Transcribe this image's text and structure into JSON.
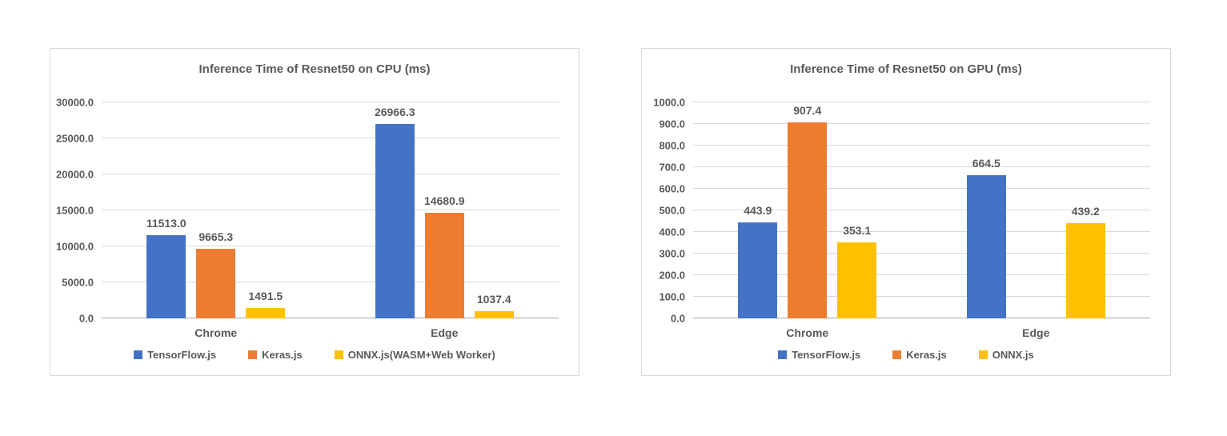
{
  "colors": {
    "tensorflow_blue": "#4472C4",
    "keras_orange": "#ED7D31",
    "onnx_yellow": "#FFC000",
    "text": "#595959",
    "gridline": "#D9D9D9",
    "axis_line": "#A6A6A6",
    "card_border": "#D9D9D9",
    "background": "#FFFFFF"
  },
  "chart_data": [
    {
      "type": "bar",
      "title": "Inference Time of Resnet50 on CPU (ms)",
      "categories": [
        "Chrome",
        "Edge"
      ],
      "series": [
        {
          "name": "TensorFlow.js",
          "color": "#4472C4",
          "values": [
            11513.0,
            26966.3
          ]
        },
        {
          "name": "Keras.js",
          "color": "#ED7D31",
          "values": [
            9665.3,
            14680.9
          ]
        },
        {
          "name": "ONNX.js(WASM+Web Worker)",
          "color": "#FFC000",
          "values": [
            1491.5,
            1037.4
          ]
        }
      ],
      "data_labels": [
        [
          "11513.0",
          "26966.3"
        ],
        [
          "9665.3",
          "14680.9"
        ],
        [
          "1491.5",
          "1037.4"
        ]
      ],
      "ylim": [
        0,
        30000
      ],
      "ytick_step": 5000,
      "ytick_labels": [
        "30000.0",
        "25000.0",
        "20000.0",
        "15000.0",
        "10000.0",
        "5000.0",
        "0.0"
      ],
      "grid": true,
      "legend_position": "bottom",
      "xlabel": "",
      "ylabel": ""
    },
    {
      "type": "bar",
      "title": "Inference Time of Resnet50 on GPU (ms)",
      "categories": [
        "Chrome",
        "Edge"
      ],
      "series": [
        {
          "name": "TensorFlow.js",
          "color": "#4472C4",
          "values": [
            443.9,
            664.5
          ]
        },
        {
          "name": "Keras.js",
          "color": "#ED7D31",
          "values": [
            907.4,
            null
          ]
        },
        {
          "name": "ONNX.js",
          "color": "#FFC000",
          "values": [
            353.1,
            439.2
          ]
        }
      ],
      "data_labels": [
        [
          "443.9",
          "664.5"
        ],
        [
          "907.4",
          null
        ],
        [
          "353.1",
          "439.2"
        ]
      ],
      "ylim": [
        0,
        1000
      ],
      "ytick_step": 100,
      "ytick_labels": [
        "1000.0",
        "900.0",
        "800.0",
        "700.0",
        "600.0",
        "500.0",
        "400.0",
        "300.0",
        "200.0",
        "100.0",
        "0.0"
      ],
      "grid": true,
      "legend_position": "bottom",
      "xlabel": "",
      "ylabel": ""
    }
  ]
}
